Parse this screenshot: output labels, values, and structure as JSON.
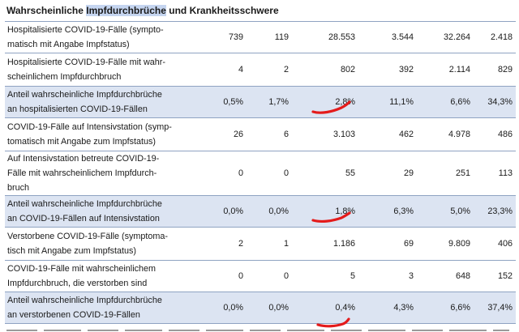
{
  "heading": {
    "before": "Wahrscheinliche ",
    "highlight": "Impfdurchbrüche",
    "after": " und Krankheitsschwere"
  },
  "rows": [
    {
      "label_lines": [
        "Hospitalisierte COVID-19-Fälle (sympto-",
        "matisch mit Angabe Impfstatus)"
      ],
      "values": [
        "739",
        "119",
        "28.553",
        "3.544",
        "32.264",
        "2.418"
      ],
      "shaded": false
    },
    {
      "label_lines": [
        "Hospitalisierte COVID-19-Fälle mit wahr-",
        "scheinlichem Impfdurchbruch"
      ],
      "values": [
        "4",
        "2",
        "802",
        "392",
        "2.114",
        "829"
      ],
      "shaded": false
    },
    {
      "label_lines": [
        "Anteil wahrscheinliche Impfdurchbrüche",
        "an hospitalisierten COVID-19-Fällen"
      ],
      "values": [
        "0,5%",
        "1,7%",
        "2,8%",
        "11,1%",
        "6,6%",
        "34,3%"
      ],
      "shaded": true
    },
    {
      "label_lines": [
        "COVID-19-Fälle auf Intensivstation (symp-",
        "tomatisch mit Angabe zum Impfstatus)"
      ],
      "values": [
        "26",
        "6",
        "3.103",
        "462",
        "4.978",
        "486"
      ],
      "shaded": false
    },
    {
      "label_lines": [
        "Auf Intensivstation betreute COVID-19-",
        "Fälle mit wahrscheinlichem Impfdurch-",
        "bruch"
      ],
      "values": [
        "0",
        "0",
        "55",
        "29",
        "251",
        "113"
      ],
      "shaded": false
    },
    {
      "label_lines": [
        "Anteil wahrscheinliche Impfdurchbrüche",
        "an COVID-19-Fällen auf Intensivstation"
      ],
      "values": [
        "0,0%",
        "0,0%",
        "1,8%",
        "6,3%",
        "5,0%",
        "23,3%"
      ],
      "shaded": true
    },
    {
      "label_lines": [
        "Verstorbene COVID-19-Fälle (symptoma-",
        "tisch mit Angabe zum Impfstatus)"
      ],
      "values": [
        "2",
        "1",
        "1.186",
        "69",
        "9.809",
        "406"
      ],
      "shaded": false
    },
    {
      "label_lines": [
        "COVID-19-Fälle mit wahrscheinlichem",
        "Impfdurchbruch, die verstorben sind"
      ],
      "values": [
        "0",
        "0",
        "5",
        "3",
        "648",
        "152"
      ],
      "shaded": false
    },
    {
      "label_lines": [
        "Anteil wahrscheinliche Impfdurchbrüche",
        "an verstorbenen COVID-19-Fällen"
      ],
      "values": [
        "0,0%",
        "0,0%",
        "0,4%",
        "4,3%",
        "6,6%",
        "37,4%"
      ],
      "shaded": true
    }
  ],
  "colors": {
    "shade": "#dce4f2",
    "heading_highlight": "#c5d5f0",
    "rule": "#8fa3c2",
    "annotation_marker": "#e41b1b"
  }
}
